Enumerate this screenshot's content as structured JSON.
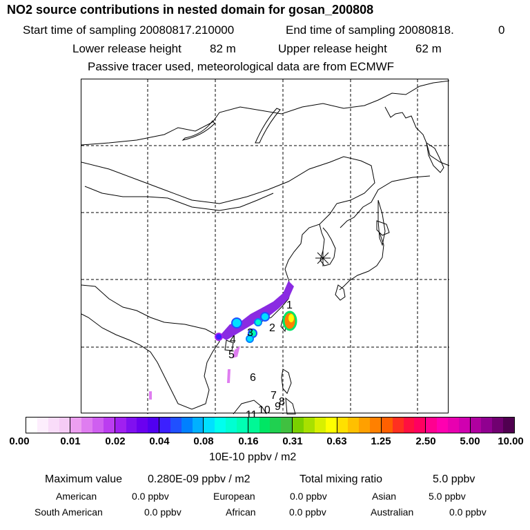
{
  "header": {
    "title": "NO2 source contributions in nested domain for gosan_200808",
    "start_label": "Start time of sampling 20080817.210000",
    "end_label": "End time of sampling 20080818.",
    "end_value": "0",
    "lower_label": "Lower release height",
    "lower_value": "82 m",
    "upper_label": "Upper release height",
    "upper_value": "62 m",
    "note": "Passive tracer used, meteorological data are from ECMWF"
  },
  "map": {
    "receptor_icon": "asterisk-receptor-marker",
    "trajectory_labels": [
      "1",
      "2",
      "3",
      "4",
      "5",
      "6",
      "7",
      "8",
      "9",
      "10",
      "11"
    ]
  },
  "colorbar": {
    "ticks": [
      "0.00",
      "0.01",
      "0.02",
      "0.04",
      "0.08",
      "0.16",
      "0.31",
      "0.63",
      "1.25",
      "2.50",
      "5.00",
      "10.00"
    ],
    "segments": [
      [
        "#ffffff",
        "#fdeefd",
        "#f9dcf9",
        "#f5cbf5"
      ],
      [
        "#ec9ff0",
        "#df7df0",
        "#cf5ff0",
        "#bb3df0"
      ],
      [
        "#a020f0",
        "#8010f0",
        "#6a00f0",
        "#5000f0"
      ],
      [
        "#3c20ff",
        "#2050ff",
        "#0080ff",
        "#00b0ff"
      ],
      [
        "#00e0ff",
        "#00ffee",
        "#00ffd2",
        "#00ffb4"
      ],
      [
        "#00f896",
        "#00e664",
        "#20d050",
        "#40c040"
      ],
      [
        "#7ad000",
        "#a8e000",
        "#d8f000",
        "#ffff00"
      ],
      [
        "#ffe000",
        "#ffc000",
        "#ffa000",
        "#ff8000"
      ],
      [
        "#ff6000",
        "#ff3020",
        "#ff1040",
        "#ff0060"
      ],
      [
        "#ff0090",
        "#ff00b0",
        "#e800b0",
        "#d000b0"
      ],
      [
        "#b000a0",
        "#900090",
        "#700070",
        "#500050"
      ]
    ],
    "unit": "10E-10 ppbv / m2"
  },
  "summary": {
    "max_label": "Maximum value",
    "max_value": "0.280E-09 ppbv / m2",
    "total_label": "Total mixing ratio",
    "total_value": "5.0 ppbv",
    "sources": [
      {
        "name": "American",
        "value": "0.0 ppbv"
      },
      {
        "name": "European",
        "value": "0.0 ppbv"
      },
      {
        "name": "Asian",
        "value": "5.0 ppbv"
      },
      {
        "name": "South American",
        "value": "0.0 ppbv"
      },
      {
        "name": "African",
        "value": "0.0 ppbv"
      },
      {
        "name": "Australian",
        "value": "0.0 ppbv"
      }
    ]
  }
}
